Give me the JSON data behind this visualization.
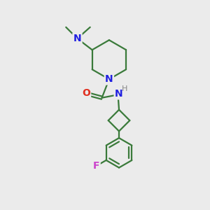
{
  "bg_color": "#ebebeb",
  "bond_color": "#3a7a3a",
  "N_color": "#2020e0",
  "O_color": "#e03020",
  "F_color": "#cc44cc",
  "H_color": "#888888",
  "line_width": 1.6,
  "font_size": 9,
  "fig_size": [
    3.0,
    3.0
  ],
  "dpi": 100,
  "xlim": [
    0,
    10
  ],
  "ylim": [
    0,
    10
  ]
}
